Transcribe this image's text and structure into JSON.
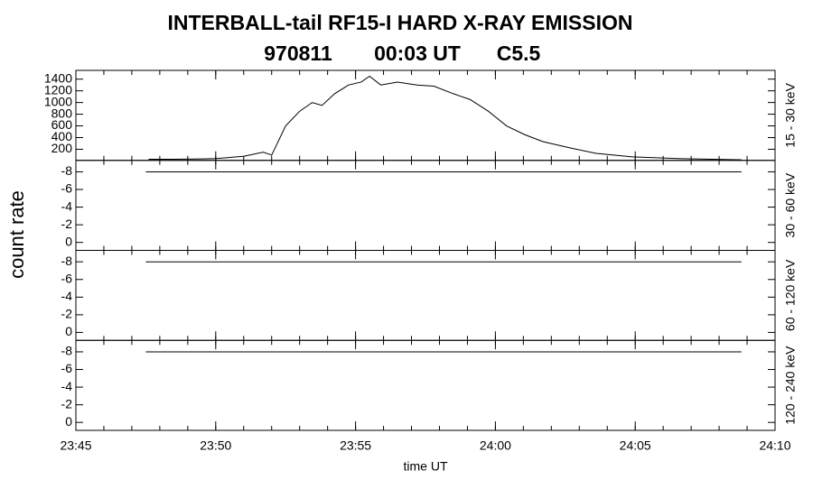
{
  "title": "INTERBALL-tail  RF15-I  HARD  X-RAY  EMISSION",
  "date": "970811",
  "time": "00:03 UT",
  "flare_class": "C5.5",
  "ylabel": "count rate",
  "chart_data": [
    {
      "type": "line",
      "label": "15 - 30 keV",
      "color": "#000000",
      "x": [
        2.6,
        3.5,
        4.5,
        5.0,
        6.0,
        6.7,
        7.0,
        7.5,
        8.0,
        8.45,
        8.8,
        9.25,
        9.75,
        10.2,
        10.5,
        10.9,
        11.5,
        12.2,
        12.8,
        13.5,
        14.1,
        14.75,
        15.4,
        16.05,
        16.7,
        17.7,
        18.6,
        19.9,
        21.55,
        23.8
      ],
      "values": [
        30,
        30,
        35,
        40,
        80,
        150,
        100,
        600,
        850,
        1000,
        950,
        1150,
        1300,
        1350,
        1450,
        1300,
        1350,
        1300,
        1280,
        1150,
        1050,
        850,
        600,
        450,
        330,
        220,
        130,
        70,
        40,
        20
      ],
      "ylim": [
        10,
        1550
      ],
      "yticks": [
        200,
        400,
        600,
        800,
        1000,
        1200,
        1400
      ]
    },
    {
      "type": "line",
      "label": "30 - 60 keV",
      "color": "#000000",
      "x": [
        2.5,
        23.8
      ],
      "values": [
        -8,
        -8
      ],
      "ylim": [
        0.9,
        -9.3
      ],
      "yticks": [
        -8,
        -6,
        -4,
        -2,
        0
      ]
    },
    {
      "type": "line",
      "label": "60 - 120 keV",
      "color": "#000000",
      "x": [
        2.5,
        23.8
      ],
      "values": [
        -8,
        -8
      ],
      "ylim": [
        0.9,
        -9.3
      ],
      "yticks": [
        -8,
        -6,
        -4,
        -2,
        0
      ]
    },
    {
      "type": "line",
      "label": "120 - 240 keV",
      "color": "#000000",
      "x": [
        2.5,
        23.8
      ],
      "values": [
        -8,
        -8
      ],
      "ylim": [
        0.9,
        -9.3
      ],
      "yticks": [
        -8,
        -6,
        -4,
        -2,
        0
      ],
      "xlabel": "time UT",
      "xlim": [
        0,
        25
      ],
      "xticks": [
        {
          "value": 0,
          "label": "23:45"
        },
        {
          "value": 5,
          "label": "23:50"
        },
        {
          "value": 10,
          "label": "23:55"
        },
        {
          "value": 15,
          "label": "24:00"
        },
        {
          "value": 20,
          "label": "24:05"
        },
        {
          "value": 25,
          "label": "24:10"
        }
      ]
    }
  ]
}
